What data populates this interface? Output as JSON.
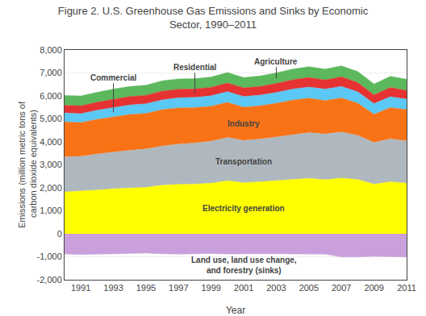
{
  "chart_data": {
    "type": "area",
    "stacked": true,
    "title": "Figure 2. U.S. Greenhouse Gas Emissions and Sinks by Economic\nSector, 1990–2011",
    "xlabel": "Year",
    "ylabel": "Emissions (million metric tons of\n carbon dioxide equivalents)",
    "x": [
      1990,
      1991,
      1992,
      1993,
      1994,
      1995,
      1996,
      1997,
      1998,
      1999,
      2000,
      2001,
      2002,
      2003,
      2004,
      2005,
      2006,
      2007,
      2008,
      2009,
      2010,
      2011
    ],
    "series": [
      {
        "name": "Land use, land use change,\nand forestry (sinks)",
        "color": "#c9a0dc",
        "values": [
          -880,
          -900,
          -890,
          -870,
          -850,
          -840,
          -870,
          -890,
          -870,
          -860,
          -880,
          -870,
          -870,
          -870,
          -880,
          -890,
          -890,
          -1010,
          -1010,
          -980,
          -1000,
          -1010
        ]
      },
      {
        "name": "Electricity generation",
        "color": "#ffff00",
        "values": [
          1820,
          1850,
          1900,
          1960,
          1990,
          2020,
          2110,
          2150,
          2160,
          2200,
          2310,
          2220,
          2260,
          2310,
          2360,
          2410,
          2350,
          2420,
          2360,
          2160,
          2260,
          2200
        ]
      },
      {
        "name": "Transportation",
        "color": "#b0b8bf",
        "values": [
          1530,
          1520,
          1570,
          1600,
          1640,
          1670,
          1710,
          1750,
          1790,
          1830,
          1880,
          1840,
          1860,
          1900,
          1950,
          1990,
          1990,
          2010,
          1920,
          1810,
          1870,
          1840
        ]
      },
      {
        "name": "Industry",
        "color": "#f97316",
        "values": [
          1520,
          1470,
          1510,
          1530,
          1560,
          1550,
          1580,
          1580,
          1540,
          1520,
          1530,
          1450,
          1450,
          1470,
          1510,
          1500,
          1460,
          1480,
          1400,
          1230,
          1360,
          1360
        ]
      },
      {
        "name": "Commercial",
        "color": "#5bc8f5",
        "values": [
          390,
          385,
          395,
          405,
          415,
          418,
          428,
          438,
          445,
          455,
          465,
          465,
          465,
          468,
          475,
          485,
          495,
          505,
          495,
          465,
          478,
          458
        ]
      },
      {
        "name": "Residential",
        "color": "#e63232",
        "values": [
          335,
          345,
          355,
          365,
          365,
          368,
          385,
          375,
          368,
          368,
          378,
          378,
          378,
          398,
          408,
          418,
          398,
          418,
          408,
          378,
          398,
          378
        ]
      },
      {
        "name": "Agriculture",
        "color": "#5cb85c",
        "values": [
          425,
          428,
          428,
          438,
          438,
          440,
          448,
          448,
          448,
          448,
          458,
          448,
          458,
          458,
          468,
          468,
          478,
          478,
          478,
          478,
          488,
          488
        ]
      }
    ],
    "xlim": [
      1990,
      2011
    ],
    "xticks": [
      1991,
      1993,
      1995,
      1997,
      1999,
      2001,
      2003,
      2005,
      2007,
      2009,
      2011
    ],
    "ylim": [
      -2000,
      8000
    ],
    "yticks": [
      {
        "value": -2000,
        "label": "-2,000"
      },
      {
        "value": -1000,
        "label": "-1,000"
      },
      0,
      {
        "value": 1000,
        "label": "1,000"
      },
      {
        "value": 2000,
        "label": "2,000"
      },
      {
        "value": 3000,
        "label": "3,000"
      },
      {
        "value": 4000,
        "label": "4,000"
      },
      {
        "value": 5000,
        "label": "5,000"
      },
      {
        "value": 6000,
        "label": "6,000"
      },
      {
        "value": 7000,
        "label": "7,000"
      },
      {
        "value": 8000,
        "label": "8,000"
      }
    ],
    "grid": true
  }
}
